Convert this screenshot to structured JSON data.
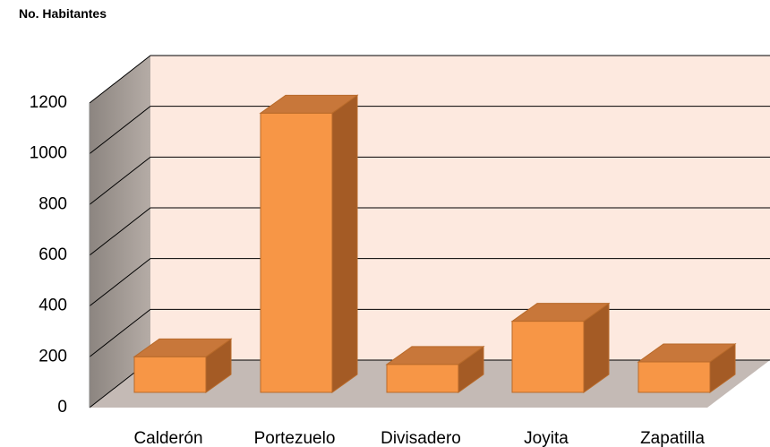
{
  "chart_data": {
    "type": "bar3d",
    "ylabel": "No. Habitantes",
    "categories": [
      "Calderón",
      "Portezuelo",
      "Divisadero",
      "Joyita",
      "Zapatilla"
    ],
    "values": [
      140,
      1100,
      110,
      280,
      120
    ],
    "color": "#f79646",
    "ylim": [
      0,
      1200
    ],
    "yticks": [
      0,
      200,
      400,
      600,
      800,
      1000,
      1200
    ],
    "grid": true
  }
}
